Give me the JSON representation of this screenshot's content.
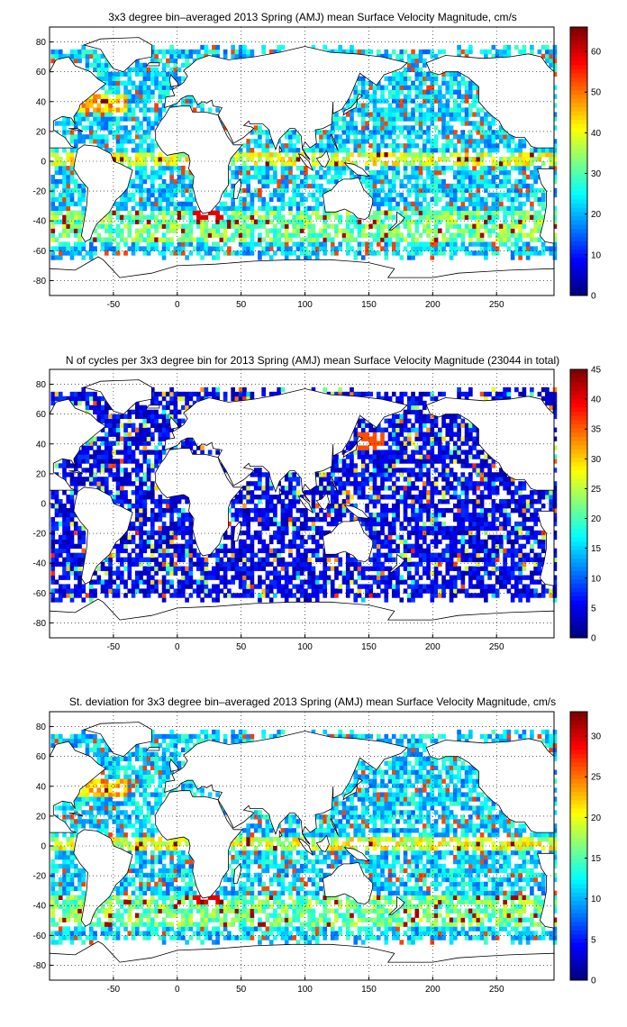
{
  "chart_data": [
    {
      "type": "heatmap",
      "title": "3x3 degree bin–averaged 2013 Spring (AMJ) mean Surface Velocity Magnitude, cm/s",
      "x_ticks": [
        "-50",
        "0",
        "50",
        "100",
        "150",
        "200",
        "250"
      ],
      "y_ticks": [
        "80",
        "60",
        "40",
        "20",
        "0",
        "-20",
        "-40",
        "-60",
        "-80"
      ],
      "colorbar_ticks": [
        "60",
        "50",
        "40",
        "30",
        "20",
        "10",
        "0"
      ],
      "xlim": [
        -100,
        295
      ],
      "ylim": [
        -90,
        90
      ],
      "clim": [
        0,
        66
      ],
      "colormap": "jet",
      "grid": "dotted"
    },
    {
      "type": "heatmap",
      "title": "N of cycles per 3x3 degree bin for 2013 Spring (AMJ) mean Surface Velocity Magnitude (23044 in total)",
      "x_ticks": [
        "-50",
        "0",
        "50",
        "100",
        "150",
        "200",
        "250"
      ],
      "y_ticks": [
        "80",
        "60",
        "40",
        "20",
        "0",
        "-20",
        "-40",
        "-60",
        "-80"
      ],
      "colorbar_ticks": [
        "45",
        "40",
        "35",
        "30",
        "25",
        "20",
        "15",
        "10",
        "5",
        "0"
      ],
      "xlim": [
        -100,
        295
      ],
      "ylim": [
        -90,
        90
      ],
      "clim": [
        0,
        45
      ],
      "colormap": "jet",
      "grid": "dotted"
    },
    {
      "type": "heatmap",
      "title": "St. deviation for 3x3 degree bin–averaged 2013 Spring (AMJ) mean Surface Velocity Magnitude, cm/s",
      "x_ticks": [
        "-50",
        "0",
        "50",
        "100",
        "150",
        "200",
        "250"
      ],
      "y_ticks": [
        "80",
        "60",
        "40",
        "20",
        "0",
        "-20",
        "-40",
        "-60",
        "-80"
      ],
      "colorbar_ticks": [
        "30",
        "25",
        "20",
        "15",
        "10",
        "5",
        "0"
      ],
      "xlim": [
        -100,
        295
      ],
      "ylim": [
        -90,
        90
      ],
      "clim": [
        0,
        33
      ],
      "colormap": "jet",
      "grid": "dotted"
    }
  ],
  "colors": {
    "jet": [
      "#00008f",
      "#0000ff",
      "#0080ff",
      "#00ffff",
      "#80ff80",
      "#ffff00",
      "#ff8000",
      "#ff0000",
      "#800000"
    ],
    "land_outline": "#000000",
    "axes": "#000000"
  }
}
